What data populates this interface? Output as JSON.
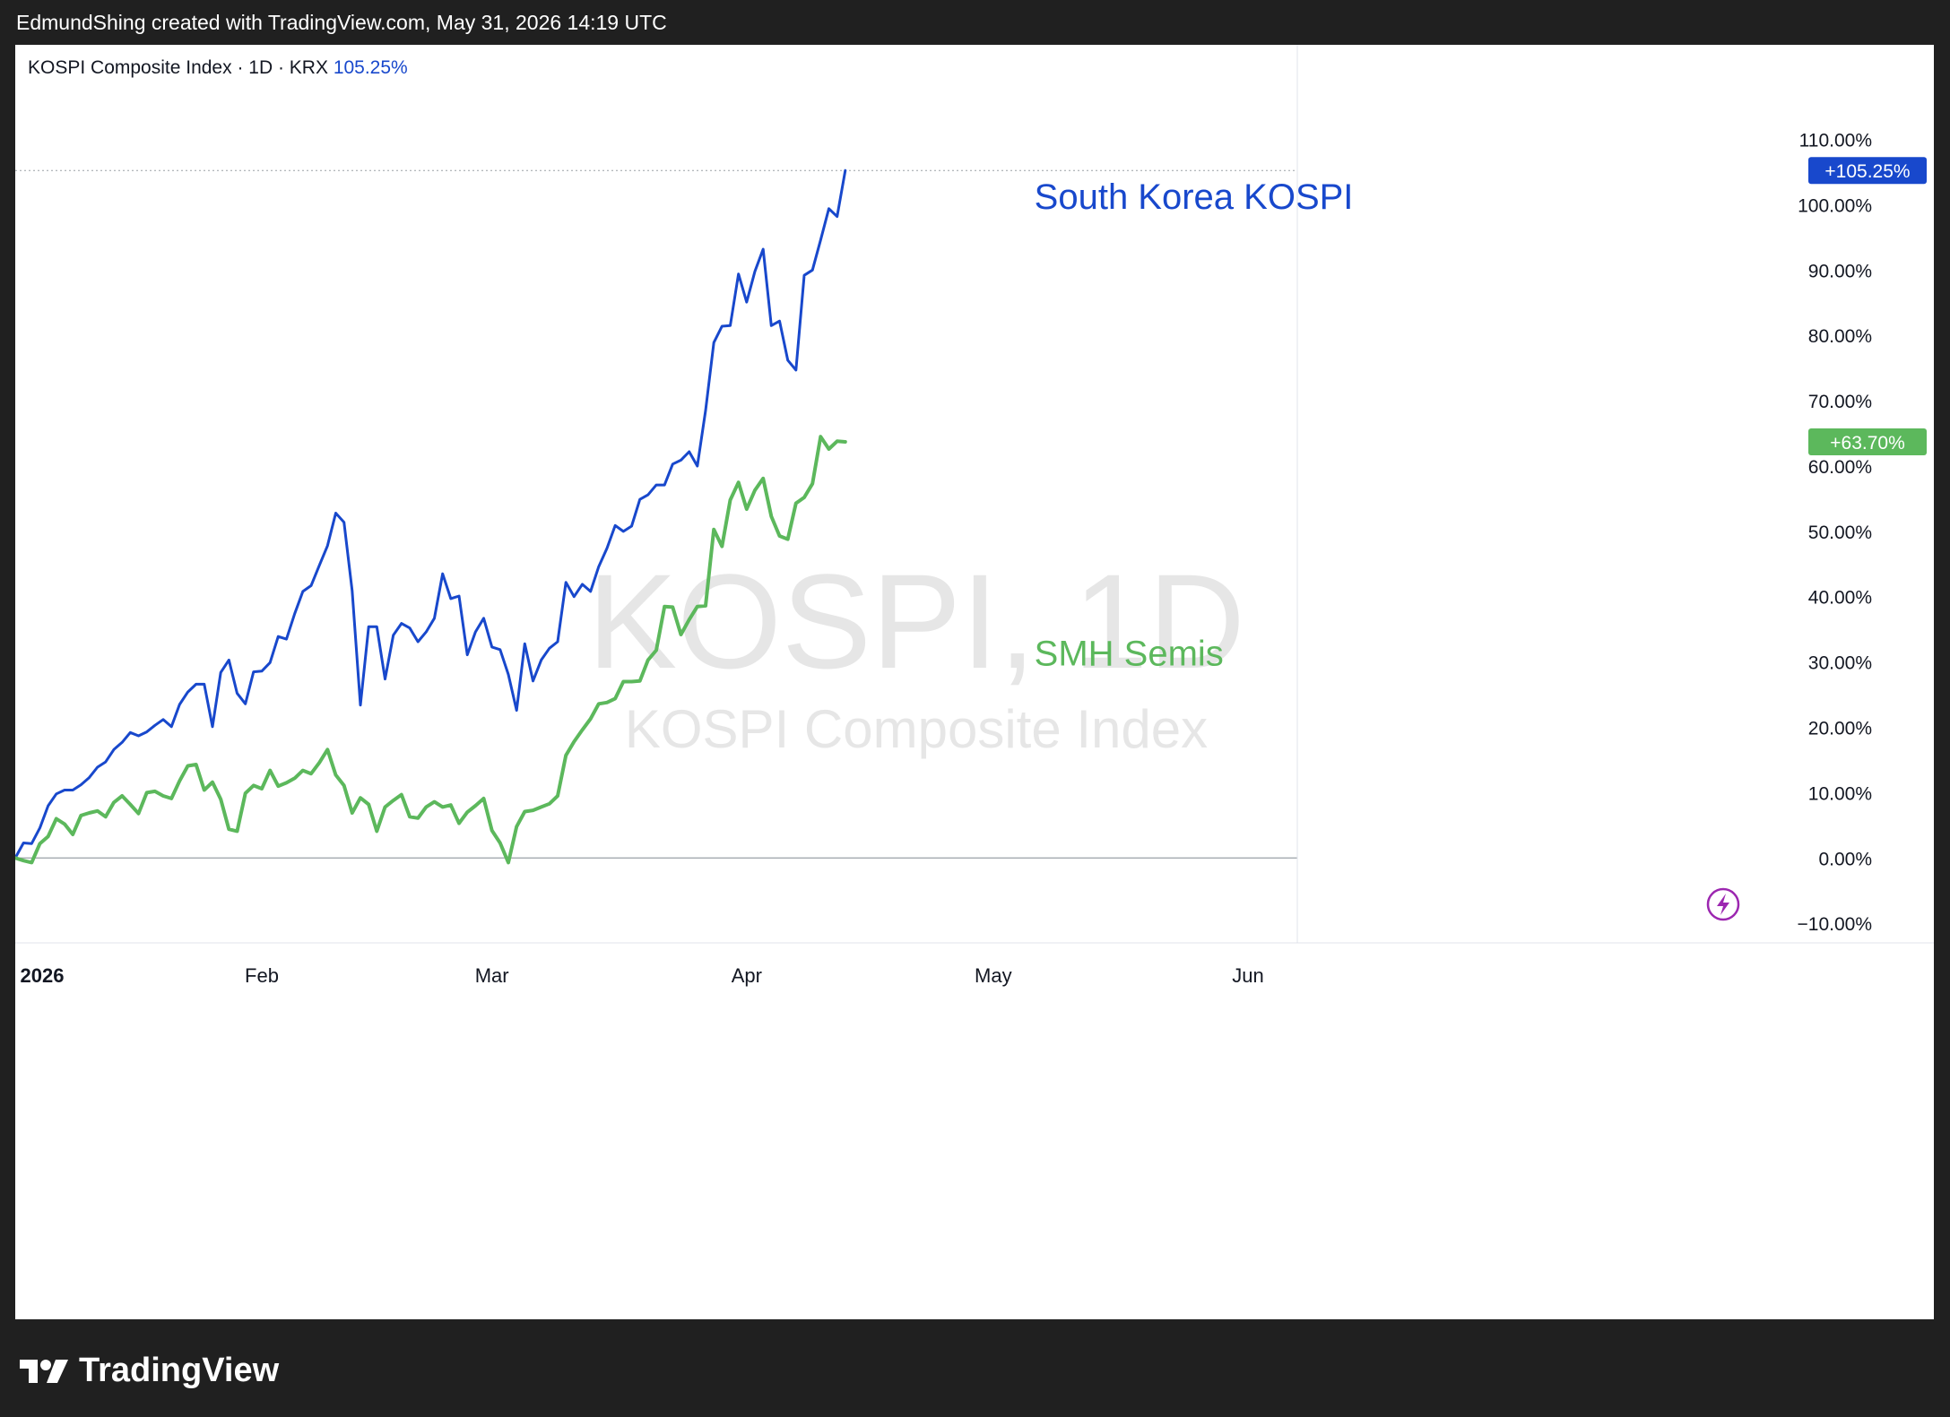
{
  "header": {
    "attribution": "EdmundShing created with TradingView.com, May 31, 2026 14:19 UTC"
  },
  "legend": {
    "symbol": "KOSPI Composite Index · 1D · KRX",
    "value": "105.25%"
  },
  "watermark": {
    "main": "KOSPI, 1D",
    "sub": "KOSPI Composite Index"
  },
  "footer": {
    "brand": "TradingView"
  },
  "colors": {
    "kospi": "#1848cc",
    "smh": "#5cb85c",
    "background": "#ffffff",
    "frame": "#202020"
  },
  "icons": {
    "brand": "tradingview-logo-icon",
    "alert": "lightning-icon"
  },
  "chart_data": {
    "type": "line",
    "title": "",
    "xlabel": "",
    "ylabel": "",
    "ylim": [
      -13,
      119
    ],
    "y_ticks": [
      "110.00%",
      "100.00%",
      "90.00%",
      "80.00%",
      "70.00%",
      "60.00%",
      "50.00%",
      "40.00%",
      "30.00%",
      "20.00%",
      "10.00%",
      "0.00%",
      "−10.00%"
    ],
    "y_tick_values": [
      110,
      100,
      90,
      80,
      70,
      60,
      50,
      40,
      30,
      20,
      10,
      0,
      -10
    ],
    "x_ticks": [
      {
        "label": "2026",
        "date": "2026-01-02"
      },
      {
        "label": "Feb",
        "date": "2026-02-01"
      },
      {
        "label": "Mar",
        "date": "2026-03-01"
      },
      {
        "label": "Apr",
        "date": "2026-04-01"
      },
      {
        "label": "May",
        "date": "2026-05-01"
      },
      {
        "label": "Jun",
        "date": "2026-06-01"
      }
    ],
    "x_range": [
      "2026-01-02",
      "2026-06-07"
    ],
    "series": [
      {
        "name": "South Korea KOSPI",
        "color": "#1848cc",
        "last_label": "+105.25%",
        "points": [
          [
            "2026-01-02",
            0
          ],
          [
            "2026-01-03",
            2.3
          ],
          [
            "2026-01-04",
            2.2
          ],
          [
            "2026-01-05",
            4.6
          ],
          [
            "2026-01-06",
            8
          ],
          [
            "2026-01-07",
            9.8
          ],
          [
            "2026-01-08",
            10.4
          ],
          [
            "2026-01-09",
            10.4
          ],
          [
            "2026-01-10",
            11.2
          ],
          [
            "2026-01-11",
            12.3
          ],
          [
            "2026-01-12",
            13.9
          ],
          [
            "2026-01-13",
            14.7
          ],
          [
            "2026-01-14",
            16.6
          ],
          [
            "2026-01-15",
            17.7
          ],
          [
            "2026-01-16",
            19.2
          ],
          [
            "2026-01-17",
            18.7
          ],
          [
            "2026-01-18",
            19.3
          ],
          [
            "2026-01-19",
            20.3
          ],
          [
            "2026-01-20",
            21.2
          ],
          [
            "2026-01-21",
            20.1
          ],
          [
            "2026-01-22",
            23.5
          ],
          [
            "2026-01-23",
            25.4
          ],
          [
            "2026-01-24",
            26.6
          ],
          [
            "2026-01-25",
            26.6
          ],
          [
            "2026-01-26",
            20.1
          ],
          [
            "2026-01-27",
            28.4
          ],
          [
            "2026-01-28",
            30.3
          ],
          [
            "2026-01-29",
            25.2
          ],
          [
            "2026-01-30",
            23.6
          ],
          [
            "2026-01-31",
            28.5
          ],
          [
            "2026-02-01",
            28.6
          ],
          [
            "2026-02-02",
            29.9
          ],
          [
            "2026-02-03",
            33.9
          ],
          [
            "2026-02-04",
            33.5
          ],
          [
            "2026-02-05",
            37.4
          ],
          [
            "2026-02-06",
            40.8
          ],
          [
            "2026-02-07",
            41.7
          ],
          [
            "2026-02-08",
            44.8
          ],
          [
            "2026-02-09",
            47.8
          ],
          [
            "2026-02-10",
            52.8
          ],
          [
            "2026-02-11",
            51.4
          ],
          [
            "2026-02-12",
            40.9
          ],
          [
            "2026-02-13",
            23.4
          ],
          [
            "2026-02-14",
            35.4
          ],
          [
            "2026-02-15",
            35.4
          ],
          [
            "2026-02-16",
            27.4
          ],
          [
            "2026-02-17",
            34.1
          ],
          [
            "2026-02-18",
            35.9
          ],
          [
            "2026-02-19",
            35.2
          ],
          [
            "2026-02-20",
            33.1
          ],
          [
            "2026-02-21",
            34.6
          ],
          [
            "2026-02-22",
            36.7
          ],
          [
            "2026-02-23",
            43.5
          ],
          [
            "2026-02-24",
            39.7
          ],
          [
            "2026-02-25",
            40.1
          ],
          [
            "2026-02-26",
            31.1
          ],
          [
            "2026-02-27",
            34.6
          ],
          [
            "2026-02-28",
            36.7
          ],
          [
            "2026-03-01",
            32.3
          ],
          [
            "2026-03-02",
            31.9
          ],
          [
            "2026-03-03",
            28.1
          ],
          [
            "2026-03-04",
            22.6
          ],
          [
            "2026-03-05",
            32.8
          ],
          [
            "2026-03-06",
            27.1
          ],
          [
            "2026-03-07",
            30.3
          ],
          [
            "2026-03-08",
            32.1
          ],
          [
            "2026-03-09",
            33.1
          ],
          [
            "2026-03-10",
            42.2
          ],
          [
            "2026-03-11",
            40
          ],
          [
            "2026-03-12",
            41.9
          ],
          [
            "2026-03-13",
            40.8
          ],
          [
            "2026-03-14",
            44.6
          ],
          [
            "2026-03-15",
            47.4
          ],
          [
            "2026-03-16",
            50.9
          ],
          [
            "2026-03-17",
            50
          ],
          [
            "2026-03-18",
            50.8
          ],
          [
            "2026-03-19",
            54.9
          ],
          [
            "2026-03-20",
            55.6
          ],
          [
            "2026-03-21",
            57.1
          ],
          [
            "2026-03-22",
            57.1
          ],
          [
            "2026-03-23",
            60.3
          ],
          [
            "2026-03-24",
            60.9
          ],
          [
            "2026-03-25",
            62.2
          ],
          [
            "2026-03-26",
            60
          ],
          [
            "2026-03-27",
            68.5
          ],
          [
            "2026-03-28",
            78.9
          ],
          [
            "2026-03-29",
            81.4
          ],
          [
            "2026-03-30",
            81.5
          ],
          [
            "2026-03-31",
            89.4
          ],
          [
            "2026-04-01",
            85.1
          ],
          [
            "2026-04-02",
            89.8
          ],
          [
            "2026-04-03",
            93.2
          ],
          [
            "2026-04-04",
            81.5
          ],
          [
            "2026-04-05",
            82.2
          ],
          [
            "2026-04-06",
            76.2
          ],
          [
            "2026-04-07",
            74.7
          ],
          [
            "2026-04-08",
            89.2
          ],
          [
            "2026-04-09",
            90
          ],
          [
            "2026-04-10",
            94.6
          ],
          [
            "2026-04-11",
            99.4
          ],
          [
            "2026-04-12",
            98.2
          ],
          [
            "2026-04-13",
            105.25
          ]
        ]
      },
      {
        "name": "SMH Semis",
        "color": "#5cb85c",
        "last_label": "+63.70%",
        "points": [
          [
            "2026-01-02",
            0
          ],
          [
            "2026-01-03",
            -0.4
          ],
          [
            "2026-01-04",
            -0.7
          ],
          [
            "2026-01-05",
            2.2
          ],
          [
            "2026-01-06",
            3.3
          ],
          [
            "2026-01-07",
            6
          ],
          [
            "2026-01-08",
            5.2
          ],
          [
            "2026-01-09",
            3.6
          ],
          [
            "2026-01-10",
            6.5
          ],
          [
            "2026-01-11",
            6.9
          ],
          [
            "2026-01-12",
            7.2
          ],
          [
            "2026-01-13",
            6.3
          ],
          [
            "2026-01-14",
            8.5
          ],
          [
            "2026-01-15",
            9.5
          ],
          [
            "2026-01-16",
            8.2
          ],
          [
            "2026-01-17",
            6.8
          ],
          [
            "2026-01-18",
            10
          ],
          [
            "2026-01-19",
            10.2
          ],
          [
            "2026-01-20",
            9.5
          ],
          [
            "2026-01-21",
            9.1
          ],
          [
            "2026-01-22",
            11.8
          ],
          [
            "2026-01-23",
            14.1
          ],
          [
            "2026-01-24",
            14.3
          ],
          [
            "2026-01-25",
            10.4
          ],
          [
            "2026-01-26",
            11.6
          ],
          [
            "2026-01-27",
            9
          ],
          [
            "2026-01-28",
            4.4
          ],
          [
            "2026-01-29",
            4.1
          ],
          [
            "2026-01-30",
            9.9
          ],
          [
            "2026-01-31",
            11.1
          ],
          [
            "2026-02-01",
            10.6
          ],
          [
            "2026-02-02",
            13.4
          ],
          [
            "2026-02-03",
            11
          ],
          [
            "2026-02-04",
            11.5
          ],
          [
            "2026-02-05",
            12.2
          ],
          [
            "2026-02-06",
            13.4
          ],
          [
            "2026-02-07",
            12.9
          ],
          [
            "2026-02-08",
            14.6
          ],
          [
            "2026-02-09",
            16.6
          ],
          [
            "2026-02-10",
            12.7
          ],
          [
            "2026-02-11",
            11.1
          ],
          [
            "2026-02-12",
            6.9
          ],
          [
            "2026-02-13",
            9.2
          ],
          [
            "2026-02-14",
            8.2
          ],
          [
            "2026-02-15",
            4.1
          ],
          [
            "2026-02-16",
            7.8
          ],
          [
            "2026-02-17",
            8.8
          ],
          [
            "2026-02-18",
            9.7
          ],
          [
            "2026-02-19",
            6.3
          ],
          [
            "2026-02-20",
            6.1
          ],
          [
            "2026-02-21",
            7.8
          ],
          [
            "2026-02-22",
            8.6
          ],
          [
            "2026-02-23",
            7.8
          ],
          [
            "2026-02-24",
            8.1
          ],
          [
            "2026-02-25",
            5.3
          ],
          [
            "2026-02-26",
            7
          ],
          [
            "2026-02-27",
            8
          ],
          [
            "2026-02-28",
            9.1
          ],
          [
            "2026-03-01",
            4.2
          ],
          [
            "2026-03-02",
            2.3
          ],
          [
            "2026-03-03",
            -0.7
          ],
          [
            "2026-03-04",
            4.8
          ],
          [
            "2026-03-05",
            7.1
          ],
          [
            "2026-03-06",
            7.3
          ],
          [
            "2026-03-07",
            7.8
          ],
          [
            "2026-03-08",
            8.3
          ],
          [
            "2026-03-09",
            9.5
          ],
          [
            "2026-03-10",
            15.7
          ],
          [
            "2026-03-11",
            17.8
          ],
          [
            "2026-03-12",
            19.6
          ],
          [
            "2026-03-13",
            21.3
          ],
          [
            "2026-03-14",
            23.6
          ],
          [
            "2026-03-15",
            23.8
          ],
          [
            "2026-03-16",
            24.4
          ],
          [
            "2026-03-17",
            27
          ],
          [
            "2026-03-18",
            27
          ],
          [
            "2026-03-19",
            27.1
          ],
          [
            "2026-03-20",
            30.3
          ],
          [
            "2026-03-21",
            31.8
          ],
          [
            "2026-03-22",
            38.5
          ],
          [
            "2026-03-23",
            38.4
          ],
          [
            "2026-03-24",
            34.2
          ],
          [
            "2026-03-25",
            36.5
          ],
          [
            "2026-03-26",
            38.5
          ],
          [
            "2026-03-27",
            38.6
          ],
          [
            "2026-03-28",
            50.3
          ],
          [
            "2026-03-29",
            47.7
          ],
          [
            "2026-03-30",
            54.8
          ],
          [
            "2026-03-31",
            57.5
          ],
          [
            "2026-04-01",
            53.4
          ],
          [
            "2026-04-02",
            56.3
          ],
          [
            "2026-04-03",
            58.1
          ],
          [
            "2026-04-04",
            52.3
          ],
          [
            "2026-04-05",
            49.3
          ],
          [
            "2026-04-06",
            48.8
          ],
          [
            "2026-04-07",
            54.3
          ],
          [
            "2026-04-08",
            55.2
          ],
          [
            "2026-04-09",
            57.3
          ],
          [
            "2026-04-10",
            64.5
          ],
          [
            "2026-04-11",
            62.6
          ],
          [
            "2026-04-12",
            63.8
          ],
          [
            "2026-04-13",
            63.7
          ]
        ]
      }
    ],
    "annotations": [
      {
        "text": "South Korea KOSPI",
        "color": "#1848cc",
        "x": "2026-05-06",
        "y": 99.4
      },
      {
        "text": "SMH Semis",
        "color": "#5cb85c",
        "x": "2026-05-06",
        "y": 29.5
      }
    ]
  }
}
